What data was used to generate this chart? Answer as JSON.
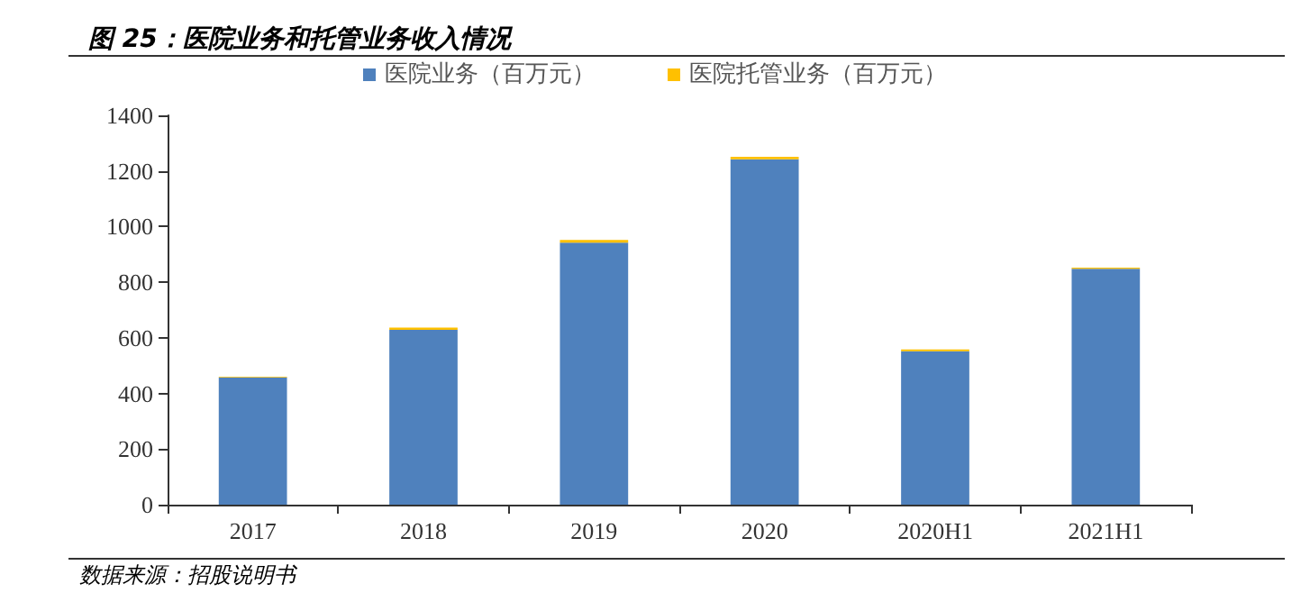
{
  "chart_data": {
    "type": "bar",
    "title": "图 25：医院业务和托管业务收入情况",
    "categories": [
      "2017",
      "2018",
      "2019",
      "2020",
      "2020H1",
      "2021H1"
    ],
    "stacked": true,
    "series": [
      {
        "name": "医院业务（百万元）",
        "color": "#4f81bd",
        "values": [
          458,
          629,
          942,
          1242,
          552,
          848
        ]
      },
      {
        "name": "医院托管业务（百万元）",
        "color": "#ffc000",
        "values": [
          2,
          8,
          10,
          9,
          6,
          4
        ]
      }
    ],
    "ylim": [
      0,
      1400
    ],
    "yticks": [
      0,
      200,
      400,
      600,
      800,
      1000,
      1200,
      1400
    ],
    "grid": false,
    "legend": "top",
    "annotations": [
      "数据来源：招股说明书"
    ]
  }
}
